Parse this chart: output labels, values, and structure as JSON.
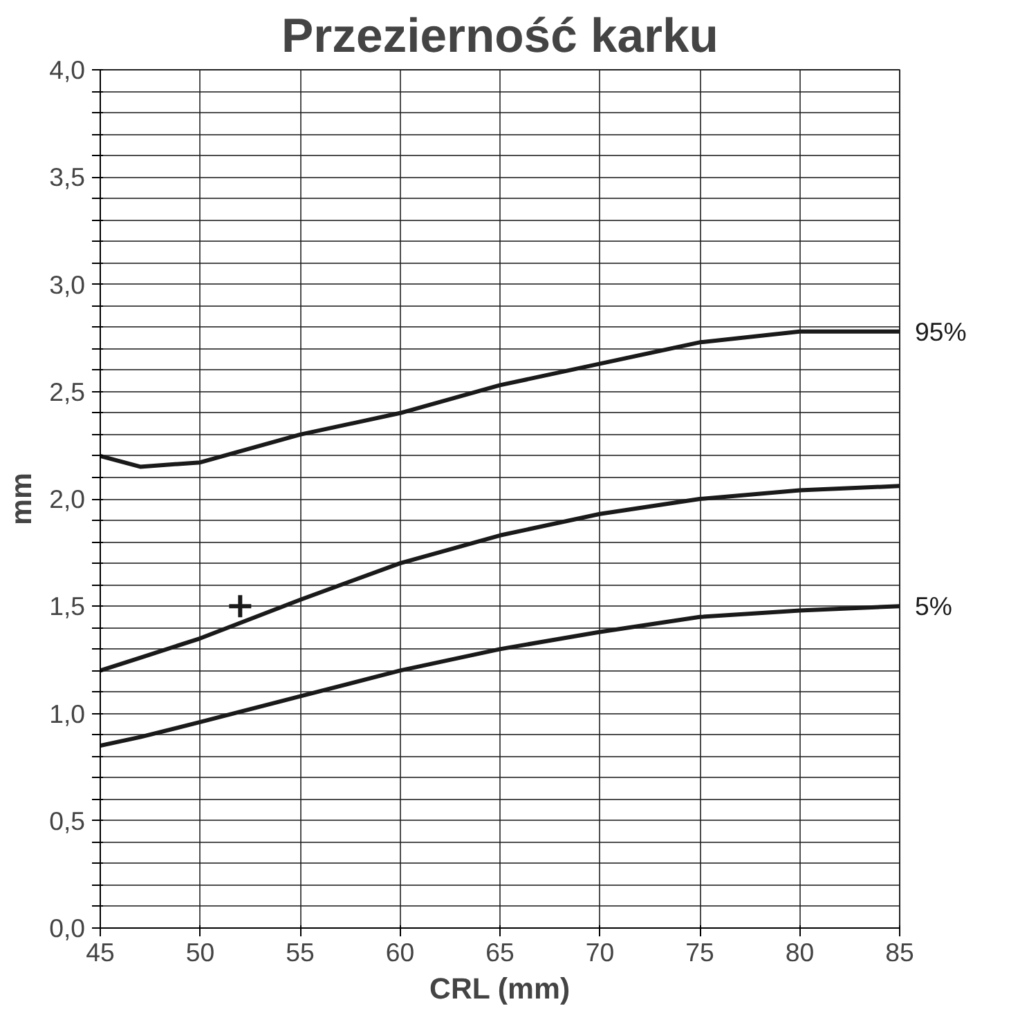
{
  "chart_data": {
    "type": "line",
    "title": "Przezierność karku",
    "xlabel": "CRL (mm)",
    "ylabel": "mm",
    "x": [
      45,
      47,
      50,
      55,
      60,
      65,
      70,
      75,
      80,
      85
    ],
    "series": [
      {
        "name": "95%",
        "color": "#1a1a1a",
        "values": [
          2.2,
          2.15,
          2.17,
          2.3,
          2.4,
          2.53,
          2.63,
          2.73,
          2.78,
          2.78
        ]
      },
      {
        "color": "#1a1a1a",
        "values": [
          1.2,
          1.26,
          1.35,
          1.53,
          1.7,
          1.83,
          1.93,
          2.0,
          2.04,
          2.06
        ]
      },
      {
        "name": "5%",
        "color": "#1a1a1a",
        "values": [
          0.85,
          0.89,
          0.96,
          1.08,
          1.2,
          1.3,
          1.38,
          1.45,
          1.48,
          1.5
        ]
      },
      {
        "type": "scatter",
        "marker": "cross",
        "color": "#1a1a1a",
        "x": [
          52
        ],
        "values": [
          1.5
        ]
      }
    ],
    "xlim": [
      45,
      85
    ],
    "xticks": [
      45,
      50,
      55,
      60,
      65,
      70,
      75,
      80,
      85
    ],
    "ylim": [
      0,
      4
    ],
    "yticks": [
      {
        "value": 0,
        "label": "0,0"
      },
      {
        "value": 0.1,
        "label": null
      },
      {
        "value": 0.2,
        "label": null
      },
      {
        "value": 0.3,
        "label": null
      },
      {
        "value": 0.4,
        "label": null
      },
      {
        "value": 0.5,
        "label": "0,5"
      },
      {
        "value": 0.6,
        "label": null
      },
      {
        "value": 0.7,
        "label": null
      },
      {
        "value": 0.8,
        "label": null
      },
      {
        "value": 0.9,
        "label": null
      },
      {
        "value": 1,
        "label": "1,0"
      },
      {
        "value": 1.1,
        "label": null
      },
      {
        "value": 1.2,
        "label": null
      },
      {
        "value": 1.3,
        "label": null
      },
      {
        "value": 1.4,
        "label": null
      },
      {
        "value": 1.5,
        "label": "1,5"
      },
      {
        "value": 1.6,
        "label": null
      },
      {
        "value": 1.7,
        "label": null
      },
      {
        "value": 1.8,
        "label": null
      },
      {
        "value": 1.9,
        "label": null
      },
      {
        "value": 2,
        "label": "2,0"
      },
      {
        "value": 2.1,
        "label": null
      },
      {
        "value": 2.2,
        "label": null
      },
      {
        "value": 2.3,
        "label": null
      },
      {
        "value": 2.4,
        "label": null
      },
      {
        "value": 2.5,
        "label": "2,5"
      },
      {
        "value": 2.6,
        "label": null
      },
      {
        "value": 2.7,
        "label": null
      },
      {
        "value": 2.8,
        "label": null
      },
      {
        "value": 2.9,
        "label": null
      },
      {
        "value": 3,
        "label": "3,0"
      },
      {
        "value": 3.1,
        "label": null
      },
      {
        "value": 3.2,
        "label": null
      },
      {
        "value": 3.3,
        "label": null
      },
      {
        "value": 3.4,
        "label": null
      },
      {
        "value": 3.5,
        "label": "3,5"
      },
      {
        "value": 3.6,
        "label": null
      },
      {
        "value": 3.7,
        "label": null
      },
      {
        "value": 3.8,
        "label": null
      },
      {
        "value": 3.9,
        "label": null
      },
      {
        "value": 4,
        "label": "4,0"
      }
    ],
    "grid": true,
    "marker": "none",
    "line_style": "solid"
  }
}
